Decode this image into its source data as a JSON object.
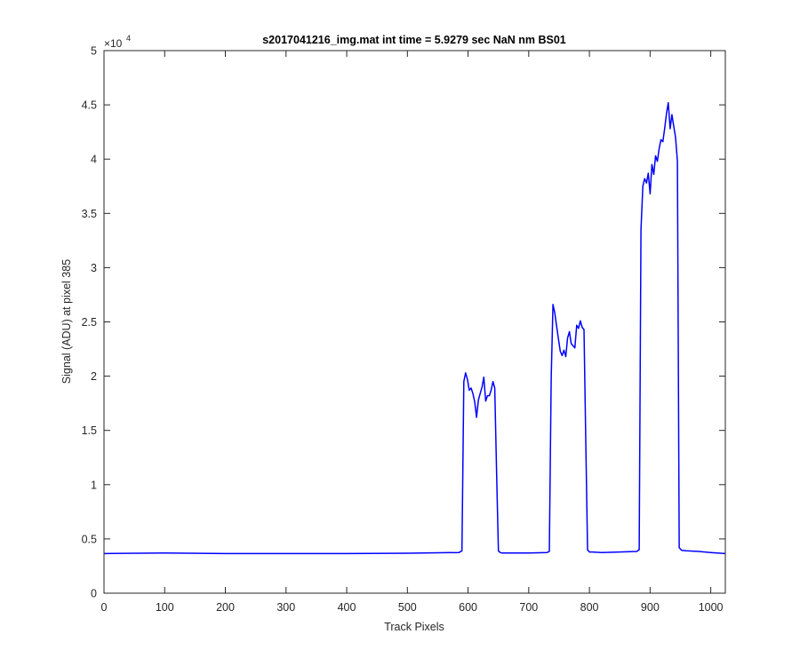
{
  "chart_data": {
    "type": "line",
    "title": "s2017041216_img.mat int time = 5.9279 sec  NaN nm BS01",
    "xlabel": "Track Pixels",
    "ylabel": "Signal (ADU) at pixel 385",
    "xlim": [
      0,
      1024
    ],
    "ylim": [
      0,
      50000
    ],
    "xticks": [
      0,
      100,
      200,
      300,
      400,
      500,
      600,
      700,
      800,
      900,
      1000
    ],
    "yticks": [
      0,
      5000,
      10000,
      15000,
      20000,
      25000,
      30000,
      35000,
      40000,
      45000,
      50000
    ],
    "ytick_labels": [
      "0",
      "0.5",
      "1",
      "1.5",
      "2",
      "2.5",
      "3",
      "3.5",
      "4",
      "4.5",
      "5"
    ],
    "y_exponent": {
      "base": "×10",
      "power": "4"
    },
    "grid": false,
    "box": true,
    "series": [
      {
        "color": "#0000ff",
        "x": [
          0,
          100,
          200,
          300,
          400,
          500,
          585,
          590,
          593,
          596,
          599,
          602,
          605,
          608,
          611,
          614,
          617,
          620,
          623,
          626,
          629,
          632,
          635,
          638,
          641,
          644,
          647,
          650,
          653,
          656,
          660,
          700,
          730,
          734,
          737,
          740,
          743,
          746,
          749,
          752,
          755,
          758,
          761,
          764,
          767,
          770,
          773,
          776,
          779,
          782,
          785,
          788,
          791,
          794,
          797,
          800,
          805,
          820,
          850,
          878,
          882,
          885,
          888,
          891,
          894,
          897,
          900,
          903,
          906,
          909,
          912,
          915,
          918,
          921,
          924,
          927,
          930,
          933,
          936,
          939,
          942,
          945,
          948,
          952,
          960,
          980,
          1000,
          1024
        ],
        "y": [
          3650,
          3700,
          3650,
          3650,
          3650,
          3680,
          3750,
          3900,
          19500,
          20300,
          19700,
          18700,
          18900,
          18400,
          17600,
          16200,
          17800,
          18400,
          19000,
          19900,
          17700,
          18200,
          18200,
          18700,
          19500,
          18900,
          11000,
          3900,
          3750,
          3700,
          3700,
          3700,
          3750,
          3850,
          19800,
          26600,
          25800,
          24600,
          23400,
          22300,
          21900,
          22400,
          21800,
          23500,
          24100,
          23000,
          22800,
          22600,
          24700,
          24400,
          25100,
          24500,
          24300,
          14000,
          4000,
          3800,
          3800,
          3750,
          3800,
          3850,
          4000,
          33500,
          37500,
          38200,
          37800,
          38700,
          36800,
          39500,
          38600,
          40300,
          39800,
          41000,
          41800,
          41600,
          42800,
          44200,
          45200,
          42800,
          44100,
          43000,
          42000,
          39800,
          4200,
          3950,
          3900,
          3850,
          3750,
          3650
        ]
      }
    ]
  }
}
